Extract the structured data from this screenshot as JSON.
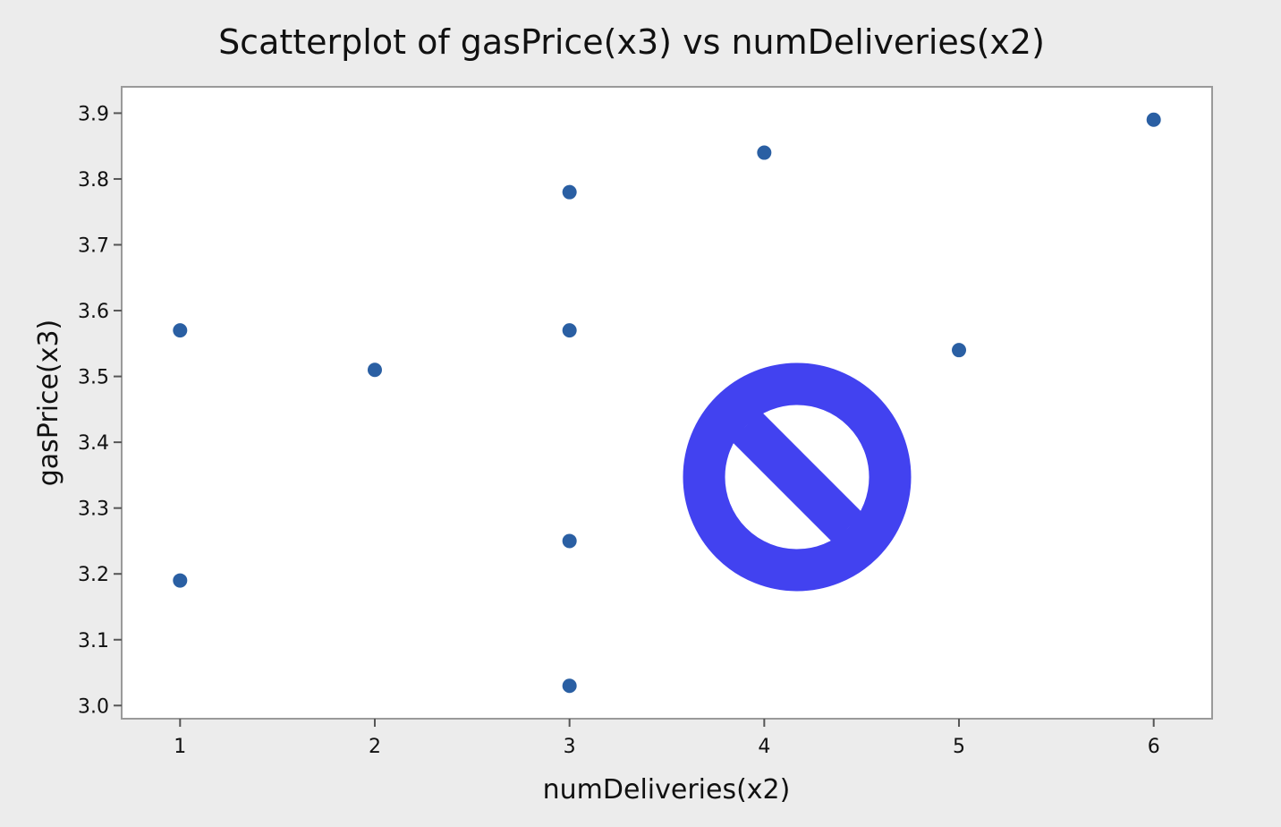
{
  "chart_data": {
    "type": "scatter",
    "title": "Scatterplot of gasPrice(x3) vs numDeliveries(x2)",
    "xlabel": "numDeliveries(x2)",
    "ylabel": "gasPrice(x3)",
    "xlim": [
      0.7,
      6.3
    ],
    "ylim": [
      2.98,
      3.94
    ],
    "x_ticks": [
      1,
      2,
      3,
      4,
      5,
      6
    ],
    "x_tick_labels": [
      "1",
      "2",
      "3",
      "4",
      "5",
      "6"
    ],
    "y_ticks": [
      3.0,
      3.1,
      3.2,
      3.3,
      3.4,
      3.5,
      3.6,
      3.7,
      3.8,
      3.9
    ],
    "y_tick_labels": [
      "3.0",
      "3.1",
      "3.2",
      "3.3",
      "3.4",
      "3.5",
      "3.6",
      "3.7",
      "3.8",
      "3.9"
    ],
    "grid": false,
    "point_color": "#2a5fa3",
    "points": [
      {
        "x": 1,
        "y": 3.57
      },
      {
        "x": 1,
        "y": 3.19
      },
      {
        "x": 2,
        "y": 3.51
      },
      {
        "x": 3,
        "y": 3.78
      },
      {
        "x": 3,
        "y": 3.57
      },
      {
        "x": 3,
        "y": 3.25
      },
      {
        "x": 3,
        "y": 3.03
      },
      {
        "x": 4,
        "y": 3.84
      },
      {
        "x": 5,
        "y": 3.54
      },
      {
        "x": 6,
        "y": 3.89
      }
    ]
  },
  "overlay": {
    "icon": "no-entry-icon",
    "color": "#4242f0"
  }
}
